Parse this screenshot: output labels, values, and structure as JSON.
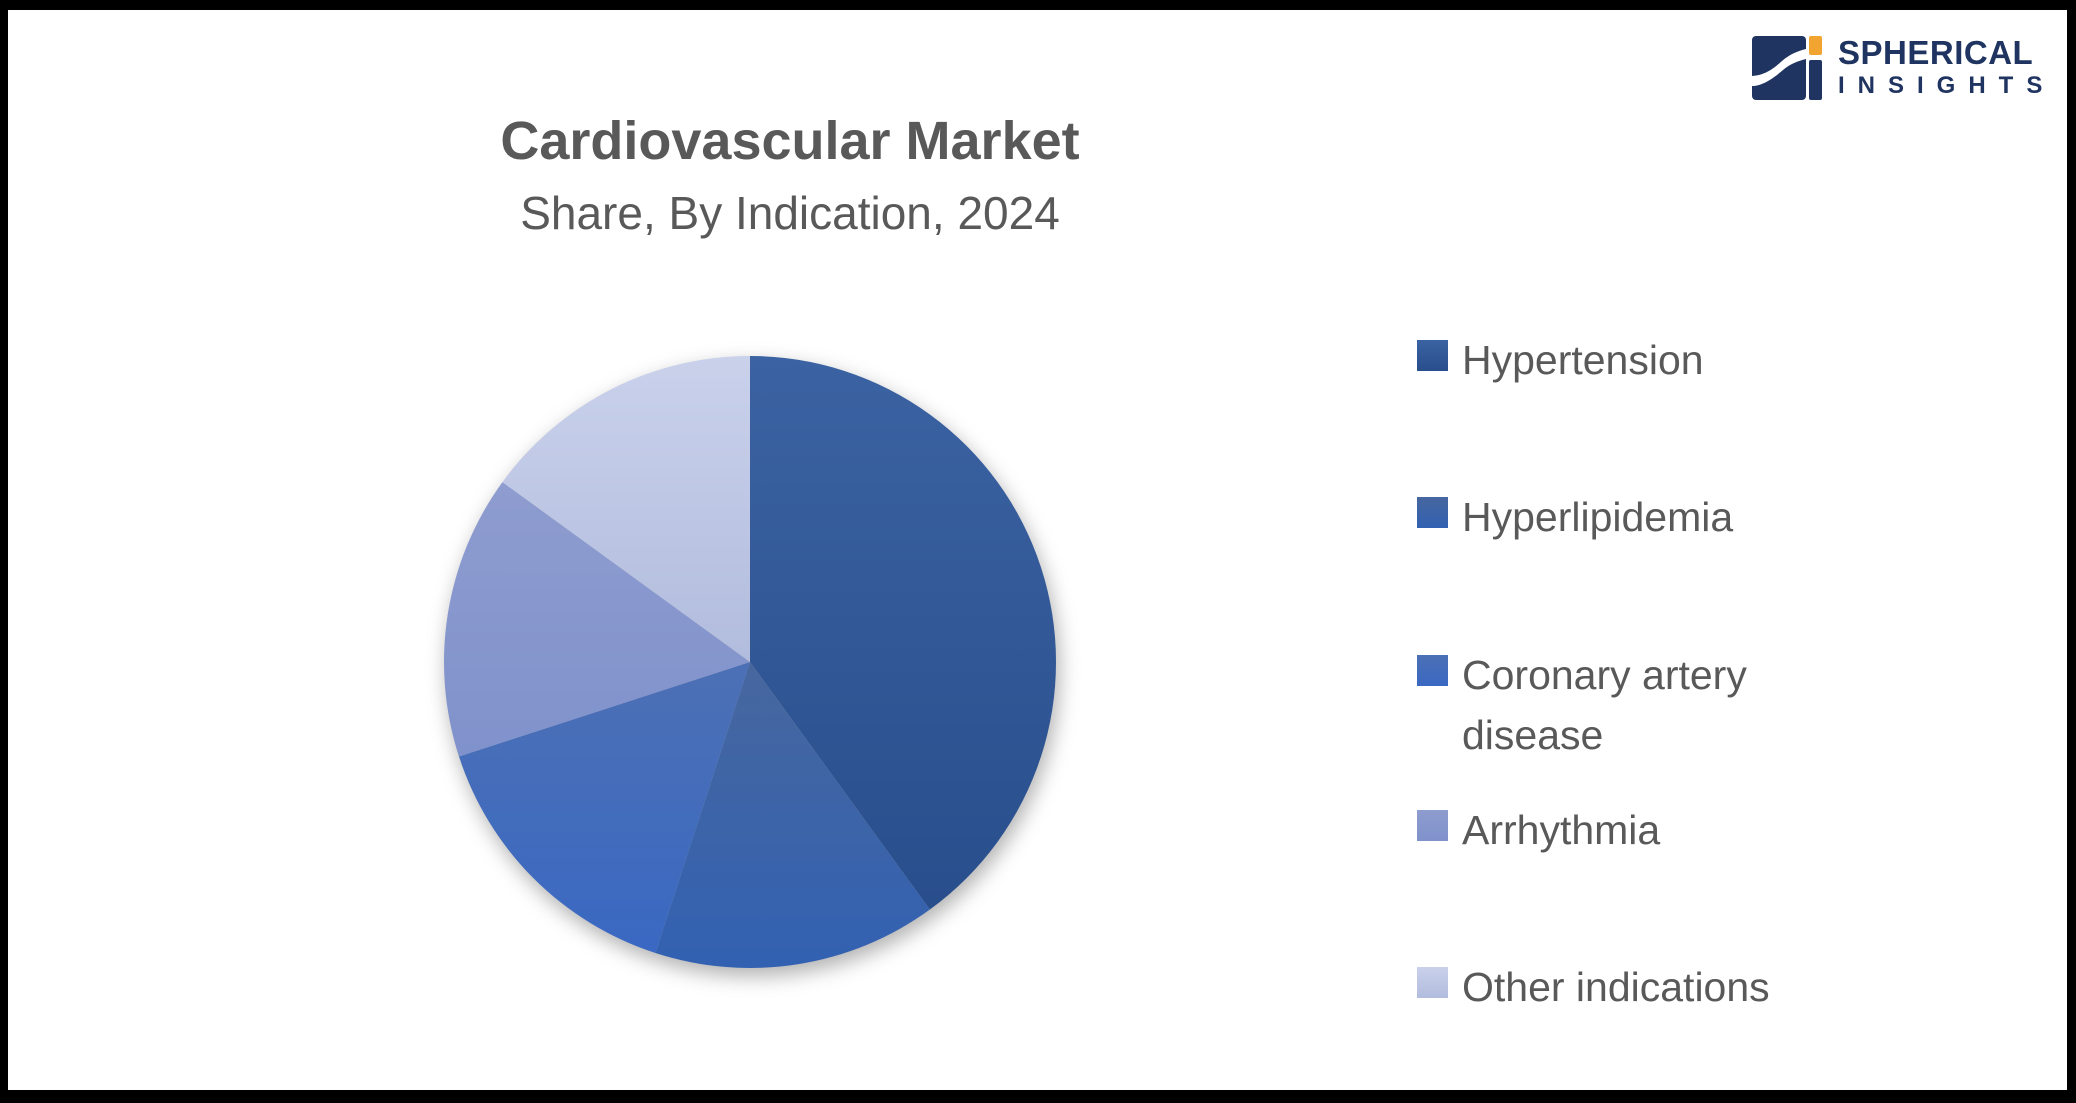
{
  "header": {
    "title": "Cardiovascular Market",
    "subtitle": "Share, By Indication, 2024"
  },
  "chart_data": {
    "type": "pie",
    "title": "Cardiovascular Market Share, By Indication, 2024",
    "categories": [
      "Hypertension",
      "Hyperlipidemia",
      "Coronary artery disease",
      "Arrhythmia",
      "Other indications"
    ],
    "values": [
      40,
      15,
      15,
      15,
      15
    ],
    "unit": "%",
    "start_angle_deg": 0,
    "direction": "clockwise",
    "legend_position": "right",
    "slice_colors": [
      [
        "#3B62A2",
        "#294E8C"
      ],
      [
        "#47679E",
        "#3261B2"
      ],
      [
        "#4C70B5",
        "#3A68C2"
      ],
      [
        "#8E9CCF",
        "#8092CC"
      ],
      [
        "#C9D1EB",
        "#B2BCDD"
      ]
    ]
  },
  "logo": {
    "line1": "SPHERICAL",
    "line2": "INSIGHTS",
    "navy": "#1F3460",
    "orange": "#F2A431"
  },
  "frame_color": "#000000",
  "text_color": "#595959"
}
